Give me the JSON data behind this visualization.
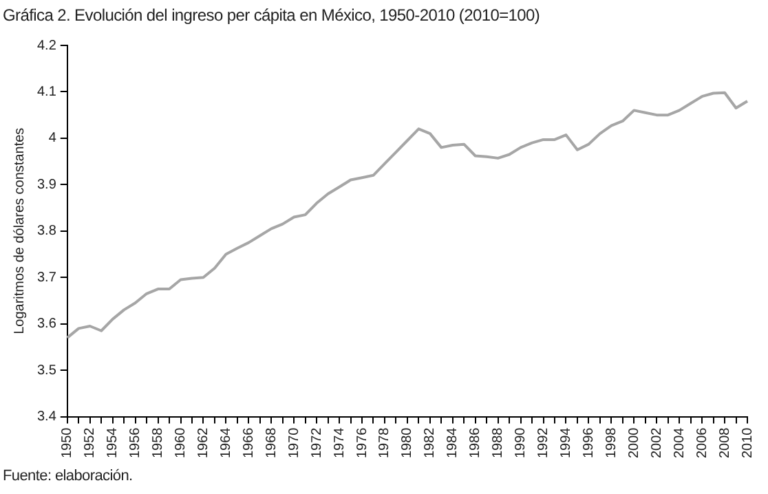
{
  "chart_data": {
    "type": "line",
    "title": "Gráfica 2. Evolución del ingreso per cápita en México, 1950-2010 (2010=100)",
    "ylabel": "Logaritmos de dólares constantes",
    "annotations": [
      "Fuente: elaboración."
    ],
    "categories": [
      "1950",
      null,
      "1952",
      null,
      "1954",
      null,
      "1956",
      null,
      "1958",
      null,
      "1960",
      null,
      "1962",
      null,
      "1964",
      null,
      "1966",
      null,
      "1968",
      null,
      "1970",
      null,
      "1972",
      null,
      "1974",
      null,
      "1976",
      null,
      "1978",
      null,
      "1980",
      null,
      "1982",
      null,
      "1984",
      null,
      "1986",
      null,
      "1988",
      null,
      "1990",
      null,
      "1992",
      null,
      "1994",
      null,
      "1996",
      null,
      "1998",
      null,
      "2000",
      null,
      "2002",
      null,
      "2004",
      null,
      "2006",
      null,
      "2008",
      null,
      "2010"
    ],
    "series": [
      {
        "color": "#a6a6a6",
        "values": [
          3.57,
          3.59,
          3.595,
          3.585,
          3.61,
          3.63,
          3.645,
          3.665,
          3.675,
          3.675,
          3.695,
          3.698,
          3.7,
          3.72,
          3.75,
          3.763,
          3.775,
          3.79,
          3.805,
          3.815,
          3.83,
          3.835,
          3.86,
          3.88,
          3.895,
          3.91,
          3.915,
          3.92,
          3.945,
          3.97,
          3.995,
          4.02,
          4.01,
          3.98,
          3.985,
          3.987,
          3.962,
          3.96,
          3.957,
          3.965,
          3.98,
          3.99,
          3.997,
          3.997,
          4.007,
          3.975,
          3.987,
          4.01,
          4.027,
          4.037,
          4.06,
          4.055,
          4.05,
          4.05,
          4.06,
          4.075,
          4.09,
          4.097,
          4.098,
          4.065,
          4.08
        ]
      }
    ],
    "ylim": [
      3.4,
      4.2
    ],
    "yticks": [
      3.4,
      3.5,
      3.6,
      3.7,
      3.8,
      3.9,
      4,
      4.1,
      4.2
    ],
    "grid": false,
    "legend": false,
    "marker": "none",
    "line_style": "solid"
  }
}
